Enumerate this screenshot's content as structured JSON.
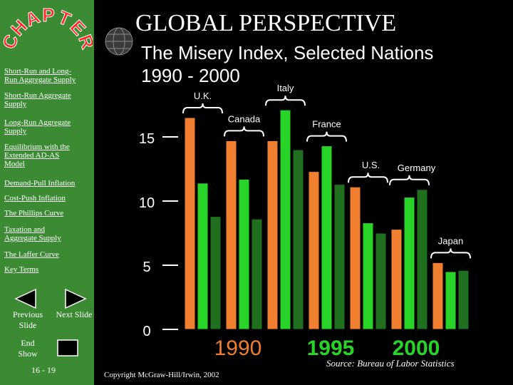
{
  "header": {
    "title": "GLOBAL PERSPECTIVE",
    "subtitle_line1": "The Misery Index, Selected Nations",
    "subtitle_line2": "1990 - 2000"
  },
  "sidebar": {
    "logo_text": "CHAPTER",
    "links": [
      {
        "label_lines": [
          "Short-Run and Long-",
          "Run Aggregate Supply"
        ]
      },
      {
        "label_lines": [
          "Short-Run Aggregate",
          "Supply"
        ]
      },
      {
        "label_lines": [
          "Long-Run Aggregate",
          "Supply"
        ]
      },
      {
        "label_lines": [
          "Equilibrium with the",
          "Extended AD-AS",
          "Model"
        ]
      },
      {
        "label_lines": [
          "Demand-Pull Inflation"
        ]
      },
      {
        "label_lines": [
          "Cost-Push Inflation"
        ]
      },
      {
        "label_lines": [
          "The Phillips Curve"
        ]
      },
      {
        "label_lines": [
          "Taxation and",
          "Aggregate Supply"
        ]
      },
      {
        "label_lines": [
          "The Laffer Curve"
        ]
      },
      {
        "label_lines": [
          "Key Terms"
        ]
      }
    ],
    "previous_label": "Previous Slide",
    "next_label": "Next Slide",
    "end_label": "End Show",
    "page_number": "16 - 19"
  },
  "footer": {
    "copyright": "Copyright McGraw-Hill/Irwin, 2002",
    "source": "Source: Bureau of Labor Statistics"
  },
  "colors": {
    "sidebar": "#3c8a34",
    "c1990": "#f07f30",
    "c1995": "#28d428",
    "c2000": "#1f6f1f",
    "background": "#000000",
    "logo_text": "#ff2020"
  },
  "chart_data": {
    "type": "bar",
    "title": "The Misery Index, Selected Nations",
    "categories": [
      "U.K.",
      "Canada",
      "Italy",
      "France",
      "U.S.",
      "Germany",
      "Japan"
    ],
    "series": [
      {
        "name": "1990",
        "values": [
          16.5,
          14.7,
          14.7,
          12.3,
          11.1,
          7.8,
          5.2
        ]
      },
      {
        "name": "1995",
        "values": [
          11.4,
          11.7,
          17.1,
          14.3,
          8.3,
          10.3,
          4.5
        ]
      },
      {
        "name": "2000",
        "values": [
          8.8,
          8.6,
          14.0,
          11.3,
          7.5,
          10.9,
          4.6
        ]
      }
    ],
    "ylim": [
      0,
      17
    ],
    "yticks": [
      0,
      5,
      10,
      15
    ]
  }
}
